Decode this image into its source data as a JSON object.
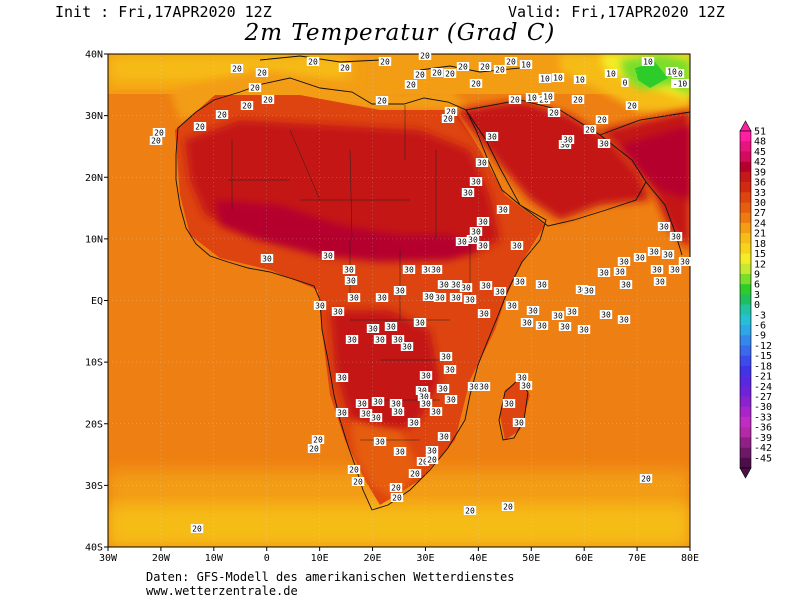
{
  "header": {
    "init": "Init : Fri,17APR2020 12Z",
    "valid": "Valid: Fri,17APR2020 12Z",
    "title": "2m Temperatur (Grad C)"
  },
  "axes": {
    "lat_labels": [
      "40N",
      "30N",
      "20N",
      "10N",
      "EQ",
      "10S",
      "20S",
      "30S",
      "40S"
    ],
    "lon_labels": [
      "30W",
      "20W",
      "10W",
      "0",
      "10E",
      "20E",
      "30E",
      "40E",
      "50E",
      "60E",
      "70E",
      "80E"
    ]
  },
  "colorbar": {
    "levels": [
      "51",
      "48",
      "45",
      "42",
      "39",
      "36",
      "33",
      "30",
      "27",
      "24",
      "21",
      "18",
      "15",
      "12",
      "9",
      "6",
      "3",
      "0",
      "-3",
      "-6",
      "-9",
      "-12",
      "-15",
      "-18",
      "-21",
      "-24",
      "-27",
      "-30",
      "-33",
      "-36",
      "-39",
      "-42",
      "-45"
    ],
    "colors": [
      "#ff1fa0",
      "#e8137d",
      "#d30a5e",
      "#b5002e",
      "#c51818",
      "#d22a10",
      "#dd4410",
      "#e65d10",
      "#ee7a12",
      "#f39d14",
      "#f6bc18",
      "#f8d31c",
      "#f4ec26",
      "#c7e830",
      "#7bdd2a",
      "#2ecc2a",
      "#1fbf5e",
      "#22c2a5",
      "#27bfd5",
      "#2ea7e8",
      "#3488ec",
      "#3a69ec",
      "#3c4cec",
      "#4034e6",
      "#5628e0",
      "#6e22d9",
      "#8a22cf",
      "#a826c8",
      "#c02cc2",
      "#b42aa6",
      "#8f2086",
      "#6d1866",
      "#4e0e4c"
    ]
  },
  "labels": {
    "t20": "20",
    "t30": "30",
    "t10": "10",
    "t0": "0",
    "tm10": "-10"
  },
  "credits": {
    "line1": "Daten: GFS-Modell des amerikanischen Wetterdienstes",
    "line2": "www.wetterzentrale.de"
  }
}
